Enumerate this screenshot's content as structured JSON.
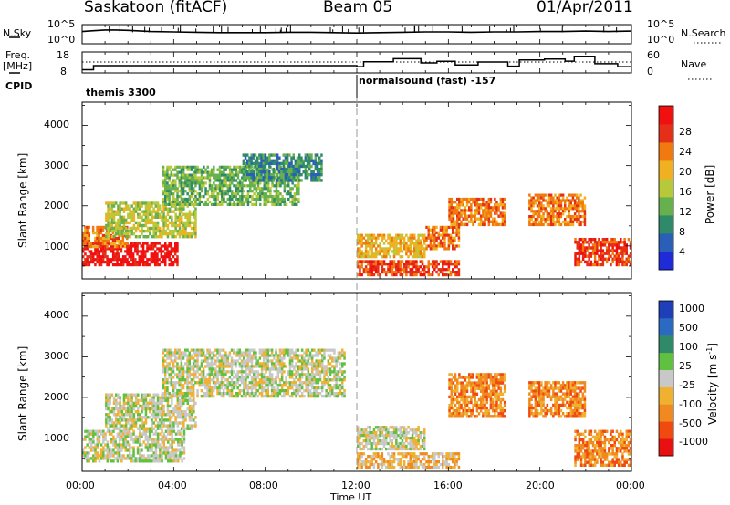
{
  "header": {
    "station": "Saskatoon (fitACF)",
    "beam": "Beam 05",
    "date": "01/Apr/2011"
  },
  "top_panels": {
    "nsky_label": "N.Sky",
    "nsky_ticks": [
      "10^5",
      "10^0"
    ],
    "nsearch_label": "N.Search",
    "nsearch_ticks": [
      "10^5",
      "10^0"
    ],
    "freq_label": "Freq.",
    "freq_unit": "[MHz]",
    "freq_ticks": [
      "18",
      "8"
    ],
    "nave_label": "Nave",
    "nave_ticks": [
      "60",
      "0"
    ],
    "cpid_label": "CPID",
    "cpid_segments": [
      {
        "start_hr": 0,
        "label": "themis 3300"
      },
      {
        "start_hr": 12,
        "label": "normalsound (fast) -157"
      }
    ]
  },
  "axes": {
    "ylabel": "Slant Range [km]",
    "yticks": [
      1000,
      2000,
      3000,
      4000
    ],
    "ylim": [
      180,
      4580
    ],
    "xlabel": "Time UT",
    "xticks": [
      "00:00",
      "04:00",
      "08:00",
      "12:00",
      "16:00",
      "20:00",
      "00:00"
    ],
    "xlim_hours": [
      0,
      24
    ]
  },
  "power_colorbar": {
    "label": "Power [dB]",
    "ticks": [
      "4",
      "8",
      "12",
      "16",
      "20",
      "24",
      "28"
    ],
    "colors": [
      "#1f2bd6",
      "#2a5fb8",
      "#2f8a6a",
      "#66b04e",
      "#b7c93a",
      "#f0b020",
      "#f07a10",
      "#e43018",
      "#f01010"
    ]
  },
  "velocity_colorbar": {
    "label": "Velocity [m s",
    "label_sup": "-1",
    "label_end": "]",
    "ticks": [
      "1000",
      "500",
      "100",
      "25",
      "-25",
      "-100",
      "-500",
      "-1000"
    ],
    "colors": [
      "#1f3fb8",
      "#2a6ac0",
      "#2f8a6a",
      "#60c040",
      "#c8c8c8",
      "#f0b030",
      "#f08a20",
      "#f04a10",
      "#e81010"
    ]
  },
  "chart_data": [
    {
      "type": "line",
      "name_label": "N.Sky",
      "x_hours": [
        0,
        0.5,
        1,
        1.5,
        2,
        3,
        4,
        5,
        6,
        7,
        8,
        9,
        10,
        11,
        12,
        13,
        14,
        15,
        16,
        17,
        18,
        19,
        20,
        21,
        22,
        23,
        24
      ],
      "y_log10": [
        3.2,
        3.4,
        3.6,
        3.6,
        3.5,
        3.2,
        3.1,
        3.0,
        2.9,
        2.9,
        2.9,
        3.0,
        3.0,
        2.9,
        2.8,
        2.9,
        3.0,
        3.1,
        3.1,
        3.0,
        3.1,
        3.1,
        3.2,
        3.2,
        3.3,
        3.2,
        3.3
      ],
      "ylim": [
        0,
        5
      ]
    },
    {
      "type": "line",
      "name_label": "Freq.",
      "x_hours": [
        0,
        0.5,
        0.5,
        12,
        12,
        12.3,
        12.3,
        13.6,
        13.6,
        14.8,
        14.8,
        15.5,
        15.5,
        16.3,
        16.3,
        17.3,
        17.3,
        18.6,
        18.6,
        19.1,
        19.1,
        20.2,
        20.2,
        21.1,
        21.1,
        21.5,
        21.5,
        22.4,
        22.4,
        23.4,
        23.4,
        24
      ],
      "y_mhz": [
        9.5,
        9.5,
        11.5,
        11.5,
        11.0,
        11.0,
        13.3,
        13.3,
        14.8,
        14.8,
        12.8,
        12.8,
        13.5,
        13.5,
        11.8,
        11.8,
        13.2,
        13.2,
        11.2,
        11.2,
        14.2,
        14.2,
        14.6,
        14.6,
        13.6,
        13.6,
        15.9,
        15.9,
        12.4,
        12.4,
        11.0,
        11.0
      ],
      "ylim": [
        8,
        18
      ]
    },
    {
      "type": "heatmap",
      "title": "Power [dB]",
      "x_hours": [
        0,
        24
      ],
      "y_km": [
        180,
        4580
      ],
      "regions": [
        {
          "t0": 0,
          "t1": 4.2,
          "r0": 500,
          "r1": 1100,
          "level": 8
        },
        {
          "t0": 0,
          "t1": 2.0,
          "r0": 950,
          "r1": 1500,
          "level": 6
        },
        {
          "t0": 1.0,
          "t1": 5.0,
          "r0": 1200,
          "r1": 2100,
          "level": 4
        },
        {
          "t0": 3.5,
          "t1": 9.5,
          "r0": 2000,
          "r1": 3000,
          "level": 3
        },
        {
          "t0": 7.0,
          "t1": 10.5,
          "r0": 2600,
          "r1": 3300,
          "level": 2
        },
        {
          "t0": 12.0,
          "t1": 16.5,
          "r0": 250,
          "r1": 650,
          "level": 7
        },
        {
          "t0": 12.0,
          "t1": 15.0,
          "r0": 700,
          "r1": 1300,
          "level": 5
        },
        {
          "t0": 15.0,
          "t1": 16.5,
          "r0": 900,
          "r1": 1500,
          "level": 6
        },
        {
          "t0": 16.0,
          "t1": 18.5,
          "r0": 1500,
          "r1": 2200,
          "level": 6
        },
        {
          "t0": 19.5,
          "t1": 22.0,
          "r0": 1500,
          "r1": 2300,
          "level": 6
        },
        {
          "t0": 21.5,
          "t1": 24,
          "r0": 500,
          "r1": 1200,
          "level": 7
        }
      ]
    },
    {
      "type": "heatmap",
      "title": "Velocity [m s-1]",
      "x_hours": [
        0,
        24
      ],
      "y_km": [
        180,
        4580
      ],
      "regions": [
        {
          "t0": 0,
          "t1": 4.5,
          "r0": 400,
          "r1": 1200,
          "level": 4
        },
        {
          "t0": 1.0,
          "t1": 5.0,
          "r0": 1200,
          "r1": 2100,
          "level": 4
        },
        {
          "t0": 3.5,
          "t1": 11.5,
          "r0": 2000,
          "r1": 3200,
          "level": 4
        },
        {
          "t0": 12.0,
          "t1": 16.5,
          "r0": 250,
          "r1": 650,
          "level": 5
        },
        {
          "t0": 12.0,
          "t1": 15.0,
          "r0": 700,
          "r1": 1300,
          "level": 4
        },
        {
          "t0": 16.0,
          "t1": 18.5,
          "r0": 1500,
          "r1": 2600,
          "level": 6
        },
        {
          "t0": 19.5,
          "t1": 22.0,
          "r0": 1500,
          "r1": 2400,
          "level": 6
        },
        {
          "t0": 21.5,
          "t1": 24,
          "r0": 300,
          "r1": 1200,
          "level": 6
        }
      ]
    }
  ]
}
